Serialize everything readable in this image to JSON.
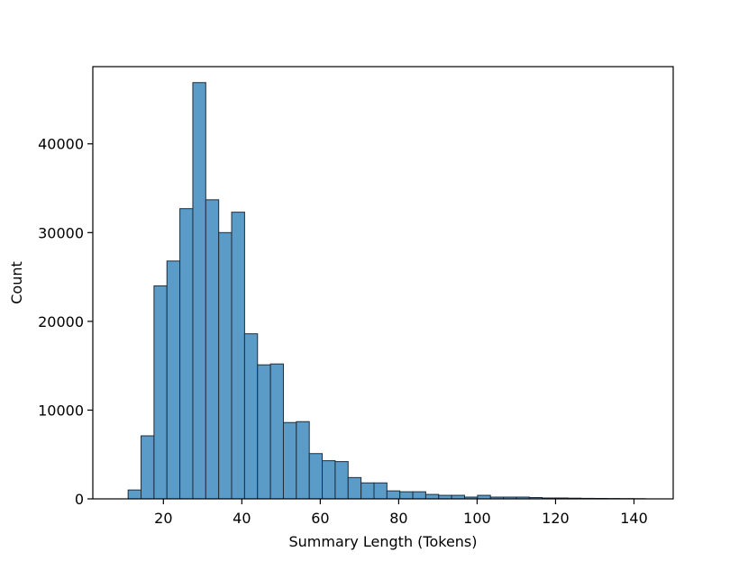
{
  "chart_data": {
    "type": "bar",
    "title": "",
    "xlabel": "Summary Length (Tokens)",
    "ylabel": "Count",
    "xlim": [
      2,
      150
    ],
    "ylim": [
      0,
      48700
    ],
    "xticks": [
      20,
      40,
      60,
      80,
      100,
      120,
      140
    ],
    "yticks": [
      0,
      10000,
      20000,
      30000,
      40000
    ],
    "grid": false,
    "bar_color": "#5b9bc8",
    "edge_color": "#1f2d3a",
    "bin_edges": [
      11,
      14.3,
      17.6,
      20.9,
      24.2,
      27.5,
      30.8,
      34.1,
      37.4,
      40.7,
      44,
      47.3,
      50.6,
      53.9,
      57.2,
      60.5,
      63.8,
      67.1,
      70.4,
      73.7,
      77,
      80.3,
      83.6,
      86.9,
      90.2,
      93.5,
      96.8,
      100.1,
      103.4,
      106.7,
      110,
      113.3,
      116.6,
      119.9,
      123.2,
      126.5,
      129.8,
      133.1,
      136.4,
      139.7,
      143
    ],
    "counts": [
      1000,
      7100,
      24000,
      26800,
      32700,
      46900,
      33700,
      30000,
      32300,
      18600,
      15100,
      15200,
      8600,
      8700,
      5100,
      4300,
      4200,
      2400,
      1800,
      1800,
      900,
      800,
      800,
      500,
      400,
      400,
      200,
      400,
      200,
      200,
      200,
      150,
      100,
      100,
      80,
      60,
      50,
      40,
      30,
      20
    ]
  }
}
